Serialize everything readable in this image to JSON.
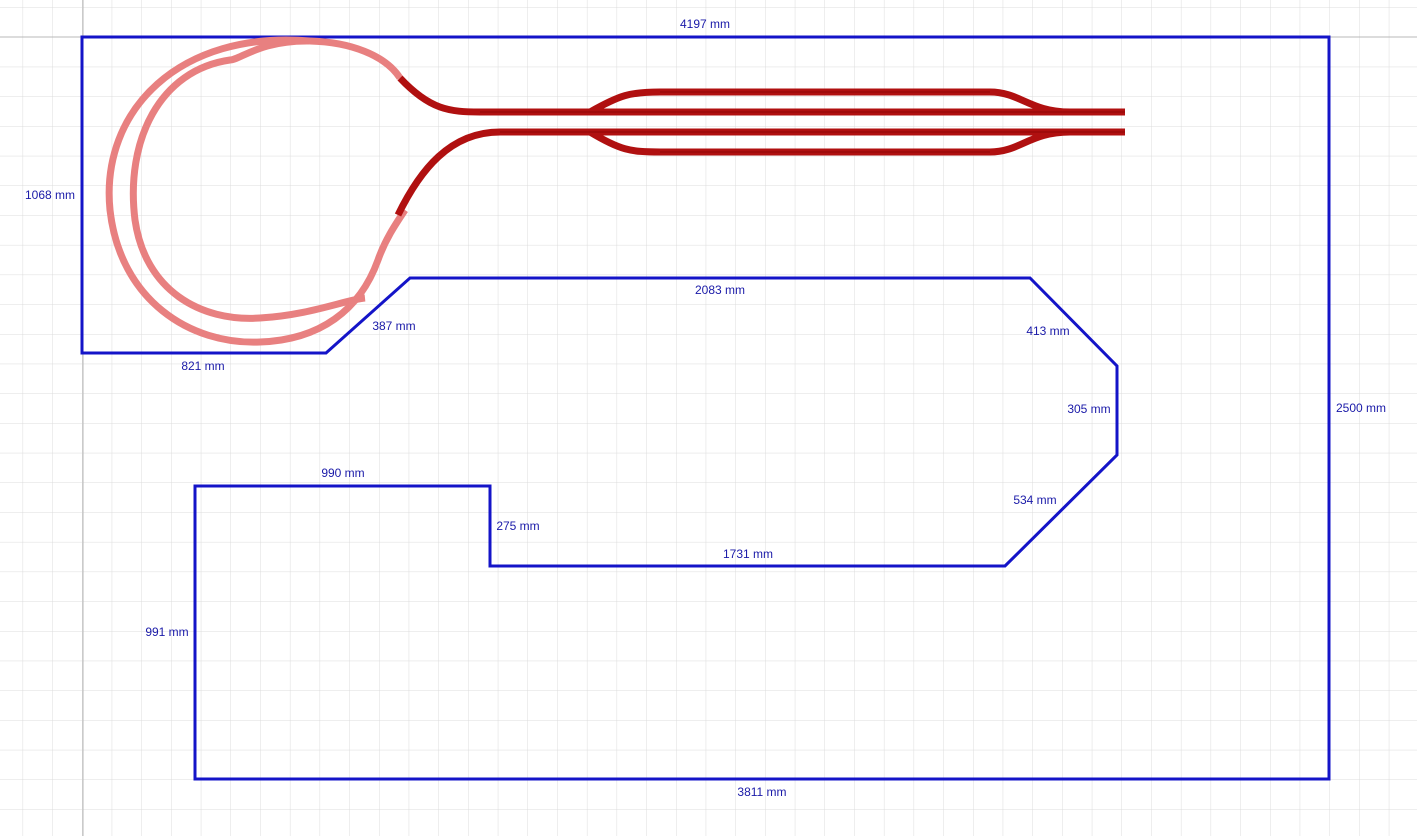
{
  "dimensions": [
    "4197 mm",
    "1068 mm",
    "2083 mm",
    "387 mm",
    "413 mm",
    "821 mm",
    "305 mm",
    "2500 mm",
    "990 mm",
    "534 mm",
    "275 mm",
    "1731 mm",
    "991 mm",
    "3811 mm"
  ]
}
